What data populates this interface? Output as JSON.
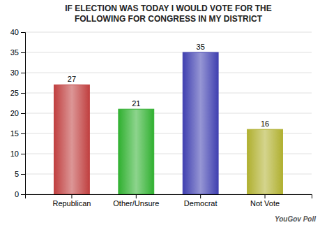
{
  "chart_data": {
    "type": "bar",
    "title": "IF ELECTION WAS TODAY I WOULD VOTE FOR THE\nFOLLOWING FOR CONGRESS IN MY DISTRICT",
    "categories": [
      "Republican",
      "Other/Unsure",
      "Democrat",
      "Not Vote"
    ],
    "values": [
      27,
      21,
      35,
      16
    ],
    "colors": [
      "#c04040",
      "#30b030",
      "#4040b0",
      "#b0b030"
    ],
    "ylim": [
      0,
      40
    ],
    "yticks": [
      0,
      5,
      10,
      15,
      20,
      25,
      30,
      35,
      40
    ],
    "grid": true,
    "data_labels": true,
    "annotations": [
      "YouGov Poll"
    ]
  }
}
